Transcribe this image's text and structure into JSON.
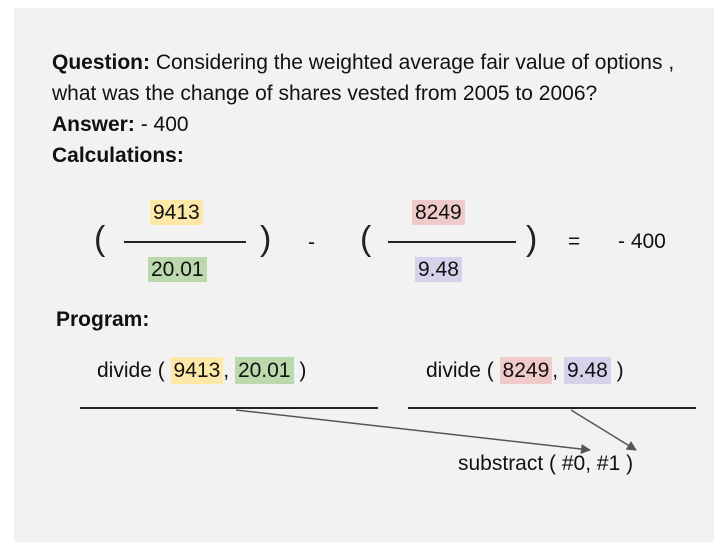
{
  "question": {
    "label": "Question:",
    "line1": " Considering the weighted average fair value of options ,",
    "line2": "what was the change of shares vested from 2005 to 2006?"
  },
  "answer": {
    "label": "Answer:",
    "value": " - 400"
  },
  "calculations": {
    "label": "Calculations:",
    "open_paren": "(",
    "close_paren": ")",
    "minus": "-",
    "equals": "=",
    "result": "- 400",
    "frac1": {
      "num": "9413",
      "den": "20.01"
    },
    "frac2": {
      "num": "8249",
      "den": "9.48"
    }
  },
  "program": {
    "label": "Program:",
    "step0": {
      "fn": "divide",
      "open": " ( ",
      "arg1": "9413",
      "sep": ", ",
      "arg2": "20.01",
      "close": " )"
    },
    "step1": {
      "fn": "divide",
      "open": " ( ",
      "arg1": "8249",
      "sep": ", ",
      "arg2": "9.48",
      "close": " )"
    },
    "step2": {
      "fn": "substract",
      "open": " ( ",
      "arg1": "#0",
      "sep": ", ",
      "arg2": "#1",
      "close": " )"
    }
  },
  "colors": {
    "yellow": "#fde8a8",
    "green": "#bcd8ad",
    "red": "#f0c9c9",
    "purple": "#d6d2ec",
    "arrow": "#555555"
  }
}
